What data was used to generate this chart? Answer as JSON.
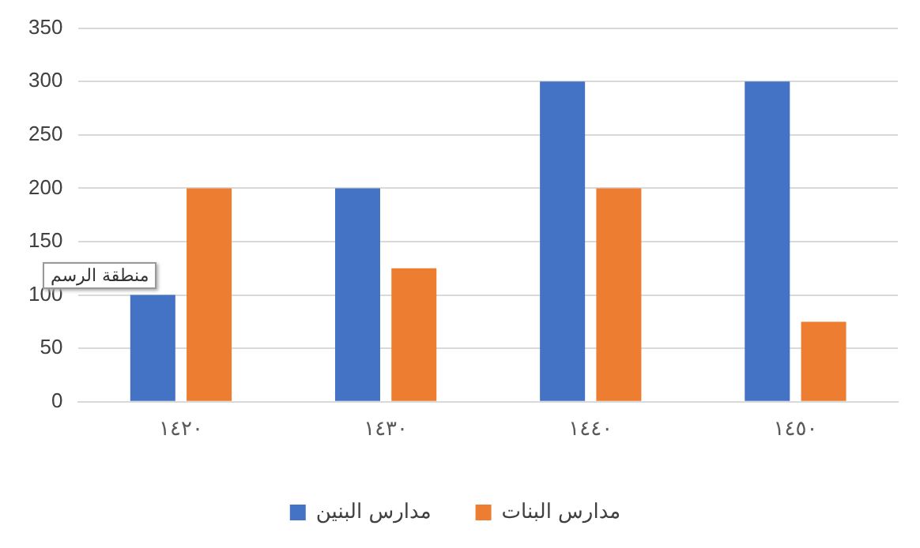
{
  "chart_data": {
    "type": "bar",
    "categories": [
      "١٤٢٠",
      "١٤٣٠",
      "١٤٤٠",
      "١٤٥٠"
    ],
    "series": [
      {
        "name": "مدارس البنين",
        "color": "#4472c4",
        "values": [
          100,
          200,
          300,
          300
        ]
      },
      {
        "name": "مدارس البنات",
        "color": "#ed7d31",
        "values": [
          200,
          125,
          200,
          75
        ]
      }
    ],
    "ylim": [
      0,
      350
    ],
    "yticks": [
      0,
      50,
      100,
      150,
      200,
      250,
      300,
      350
    ],
    "grid": "y",
    "legend": "bottom",
    "annotations": [
      "منطقة الرسم"
    ]
  }
}
